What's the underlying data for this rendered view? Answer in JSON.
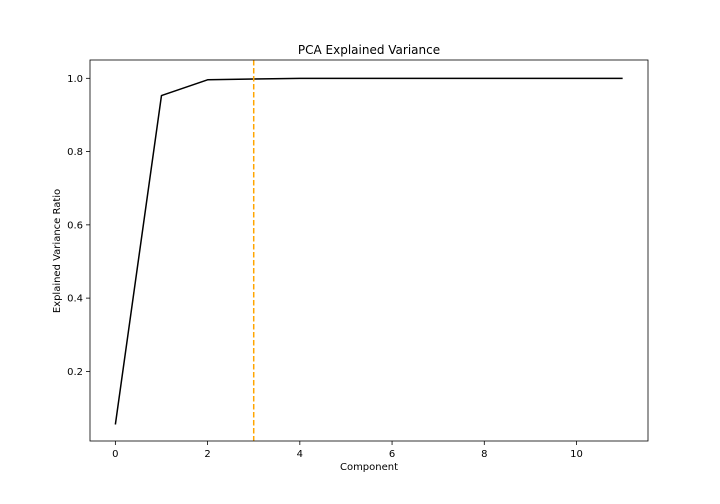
{
  "chart_data": {
    "type": "line",
    "title": "PCA Explained Variance",
    "xlabel": "Component",
    "ylabel": "Explained Variance Ratio",
    "xlim": [
      -0.55,
      11.55
    ],
    "ylim": [
      0.01,
      1.05
    ],
    "xticks": [
      0,
      2,
      4,
      6,
      8,
      10
    ],
    "yticks": [
      0.2,
      0.4,
      0.6,
      0.8,
      1.0
    ],
    "grid": false,
    "series": [
      {
        "color": "#000000",
        "x": [
          0,
          1,
          2,
          3,
          4,
          5,
          6,
          7,
          8,
          9,
          10,
          11
        ],
        "y": [
          0.055,
          0.953,
          0.996,
          0.998,
          1.0,
          1.0,
          1.0,
          1.0,
          1.0,
          1.0,
          1.0,
          1.0
        ]
      }
    ],
    "vline": {
      "x": 3,
      "color": "#ffa500",
      "style": "dashed"
    }
  }
}
